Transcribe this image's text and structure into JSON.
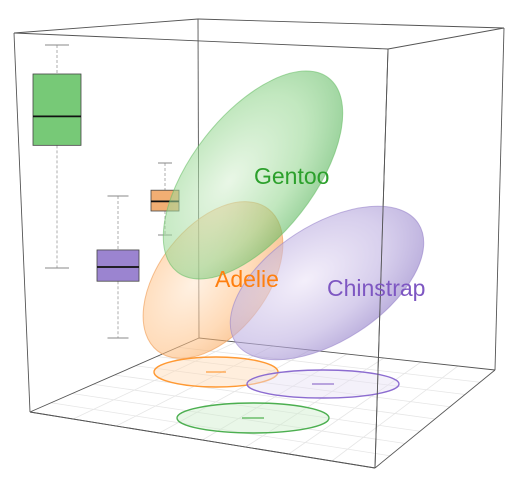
{
  "chart_data": {
    "type": "3d-ellipsoid",
    "description_free": true,
    "series": [
      {
        "name": "Gentoo",
        "color": "#2ca02c",
        "boxplot": {
          "min": 0.0,
          "q1": 0.55,
          "median": 0.68,
          "q3": 0.87,
          "max": 1.0
        }
      },
      {
        "name": "Adelie",
        "color": "#ff7f0e",
        "boxplot": {
          "min": 0.55,
          "q1": 0.7,
          "median": 0.76,
          "q3": 0.83,
          "max": 1.0
        }
      },
      {
        "name": "Chinstrap",
        "color": "#7e57c2",
        "boxplot": {
          "min": 0.0,
          "q1": 0.4,
          "median": 0.5,
          "q3": 0.62,
          "max": 1.0
        }
      }
    ],
    "legend": "labels-on-plot",
    "grid": "floor-only",
    "colors": {
      "gentoo": "#2ca02c",
      "adelie": "#ff7f0e",
      "chinstrap": "#7e57c2"
    }
  }
}
